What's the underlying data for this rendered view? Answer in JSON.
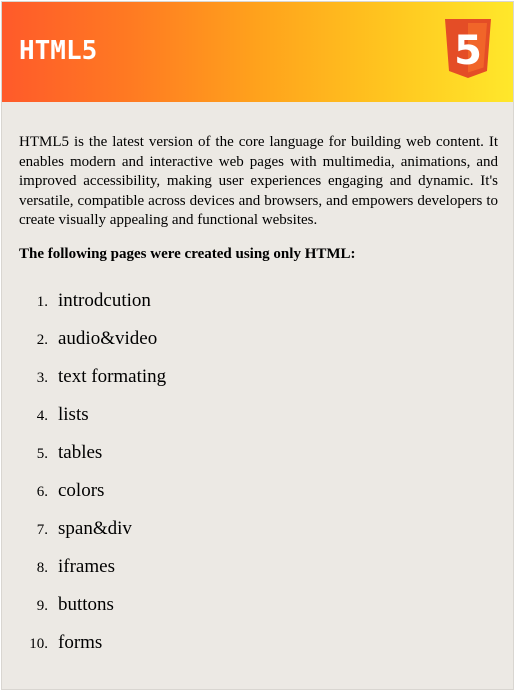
{
  "header": {
    "title": "HTML5",
    "logo_icon": "html5-logo-icon",
    "logo_digit": "5",
    "gradient_colors": [
      "#ff5a2a",
      "#ffa21c",
      "#ffe82b"
    ]
  },
  "intro": {
    "text": "HTML5 is the latest version of the core language for building web content. It enables modern and interactive web pages with multimedia, animations, and improved accessibility, making user experiences engaging and dynamic. It's versatile, compatible across devices and browsers, and empowers developers to create visually appealing and functional websites."
  },
  "pages_heading": "The following pages were created using only HTML:",
  "pages": [
    {
      "number": "1.",
      "label": "introdcution"
    },
    {
      "number": "2.",
      "label": "audio&video"
    },
    {
      "number": "3.",
      "label": "text formating"
    },
    {
      "number": "4.",
      "label": "lists"
    },
    {
      "number": "5.",
      "label": "tables"
    },
    {
      "number": "6.",
      "label": "colors"
    },
    {
      "number": "7.",
      "label": "span&div"
    },
    {
      "number": "8.",
      "label": "iframes"
    },
    {
      "number": "9.",
      "label": "buttons"
    },
    {
      "number": "10.",
      "label": "forms"
    }
  ]
}
